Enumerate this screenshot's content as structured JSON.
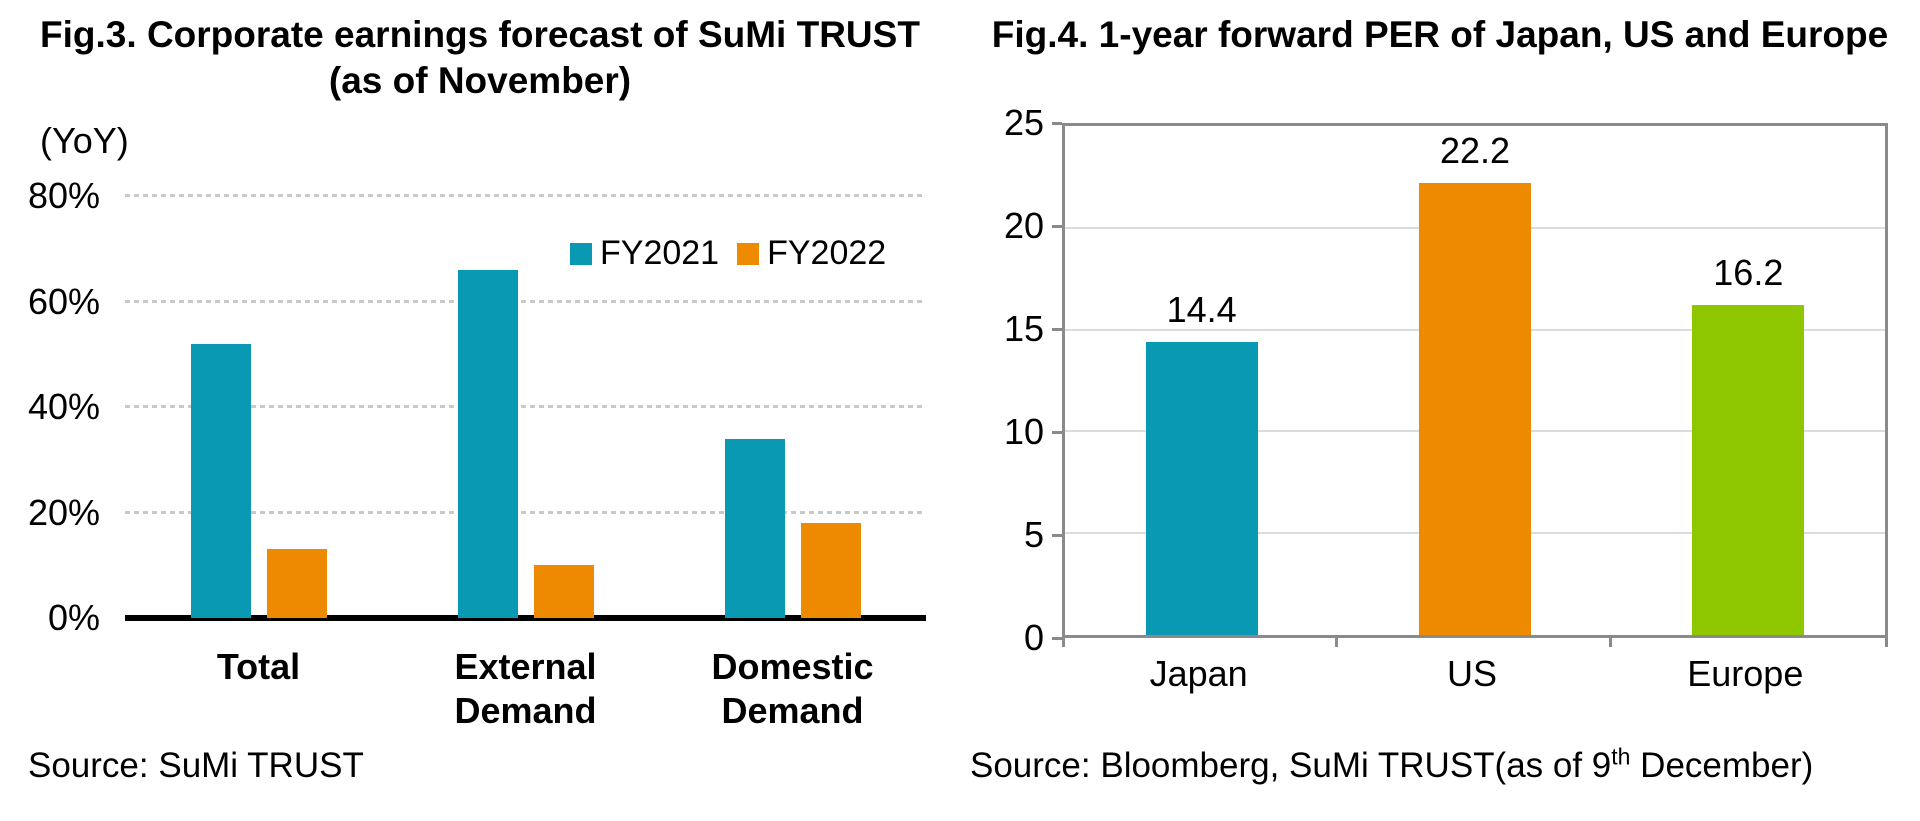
{
  "chart_data": [
    {
      "id": "fig3",
      "type": "bar",
      "title": "Fig.3. Corporate earnings forecast of SuMi TRUST",
      "subtitle": "(as of November)",
      "axis_unit": "(YoY)",
      "categories": [
        "Total",
        "External\nDemand",
        "Domestic\nDemand"
      ],
      "series": [
        {
          "name": "FY2021",
          "color": "#0999B2",
          "values": [
            52,
            66,
            34
          ]
        },
        {
          "name": "FY2022",
          "color": "#EE8A00",
          "values": [
            13,
            10,
            18
          ]
        }
      ],
      "ylim": [
        0,
        80
      ],
      "yticks": [
        0,
        20,
        40,
        60,
        80
      ],
      "ytick_suffix": "%",
      "grid": "dotted-horizontal",
      "grid_color": "#C9C9C9",
      "axis_color": "#000000",
      "legend_position": "inside-top-right",
      "source": "Source: SuMi TRUST"
    },
    {
      "id": "fig4",
      "type": "bar",
      "title": "Fig.4. 1-year forward PER of Japan, US and Europe",
      "categories": [
        "Japan",
        "US",
        "Europe"
      ],
      "series": [
        {
          "name": "1-year forward PER",
          "values": [
            14.4,
            22.2,
            16.2
          ],
          "colors": [
            "#0999B2",
            "#EE8A00",
            "#8EC700"
          ]
        }
      ],
      "data_labels": [
        "14.4",
        "22.2",
        "16.2"
      ],
      "ylim": [
        0,
        25
      ],
      "yticks": [
        0,
        5,
        10,
        15,
        20,
        25
      ],
      "ytick_suffix": "",
      "grid": "solid-horizontal",
      "grid_color": "#DCDCDC",
      "frame_color": "#8A8A8A",
      "legend_position": "none",
      "source_prefix": "Source: Bloomberg, SuMi TRUST(as of 9",
      "source_sup": "th",
      "source_suffix": " December)"
    }
  ]
}
